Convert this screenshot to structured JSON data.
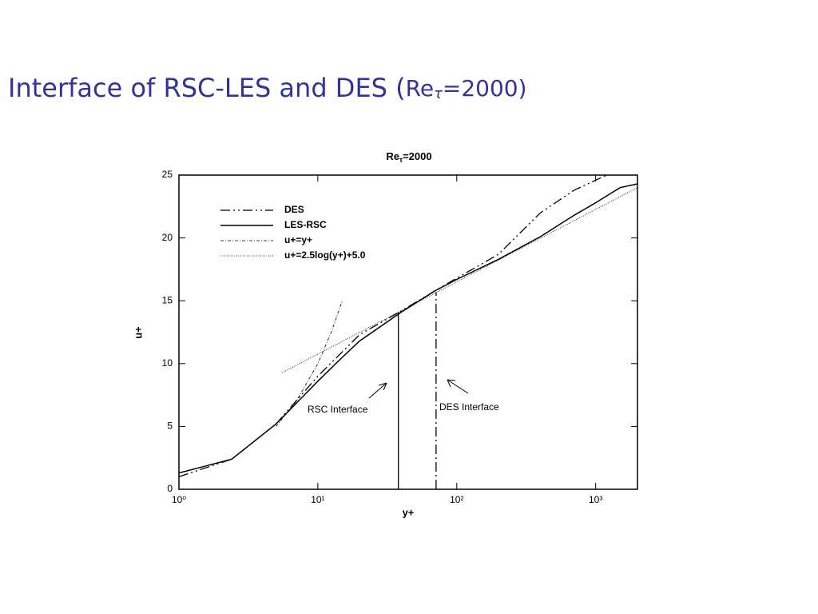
{
  "slide_title": [
    "Interface of RSC-LES and DES (",
    "Re",
    "τ",
    "=2000)"
  ],
  "chart_data": {
    "type": "line",
    "title": [
      "Re",
      "τ",
      "=2000"
    ],
    "xlabel": "y+",
    "ylabel": "u+",
    "xscale": "log",
    "xlim": [
      1,
      2000
    ],
    "ylim": [
      0,
      25
    ],
    "xticks": [
      {
        "value": 1,
        "label": "10⁰"
      },
      {
        "value": 10,
        "label": "10¹"
      },
      {
        "value": 100,
        "label": "10²"
      },
      {
        "value": 1000,
        "label": "10³"
      }
    ],
    "yticks": [
      0,
      5,
      10,
      15,
      20,
      25
    ],
    "series": [
      {
        "name": "DES",
        "color": "#000000",
        "dash": "dash-dot-dot",
        "x": [
          1,
          2.4,
          5,
          10,
          20,
          40,
          70,
          100,
          200,
          400,
          700,
          1200
        ],
        "values": [
          1.0,
          2.4,
          5.2,
          9.0,
          12.3,
          14.2,
          15.8,
          16.8,
          18.7,
          22.0,
          23.8,
          25.0
        ]
      },
      {
        "name": "LES-RSC",
        "color": "#000000",
        "dash": "solid",
        "x": [
          1,
          2.4,
          5,
          10,
          15,
          20,
          40,
          70,
          100,
          200,
          400,
          700,
          1000,
          1500,
          2000
        ],
        "values": [
          1.3,
          2.4,
          5.2,
          8.6,
          10.5,
          11.8,
          14.1,
          15.8,
          16.7,
          18.3,
          20.1,
          21.8,
          22.8,
          24.0,
          24.3
        ]
      },
      {
        "name": "u+=y+",
        "color": "#000000",
        "dash": "dash-dot-fine",
        "x": [
          5,
          7,
          10,
          12.5,
          15
        ],
        "values": [
          5,
          7,
          10,
          12.5,
          15
        ]
      },
      {
        "name": "u+=2.5log(y+)+5.0",
        "color": "#000000",
        "dash": "dotted",
        "x": [
          5.5,
          10,
          100,
          1000,
          2000
        ],
        "values": [
          9.26,
          10.76,
          16.51,
          22.27,
          24.0
        ]
      }
    ],
    "interfaces": [
      {
        "name": "RSC Interface",
        "x": 38,
        "y": 14.1
      },
      {
        "name": "DES Interface",
        "x": 71,
        "y": 15.7
      }
    ]
  }
}
